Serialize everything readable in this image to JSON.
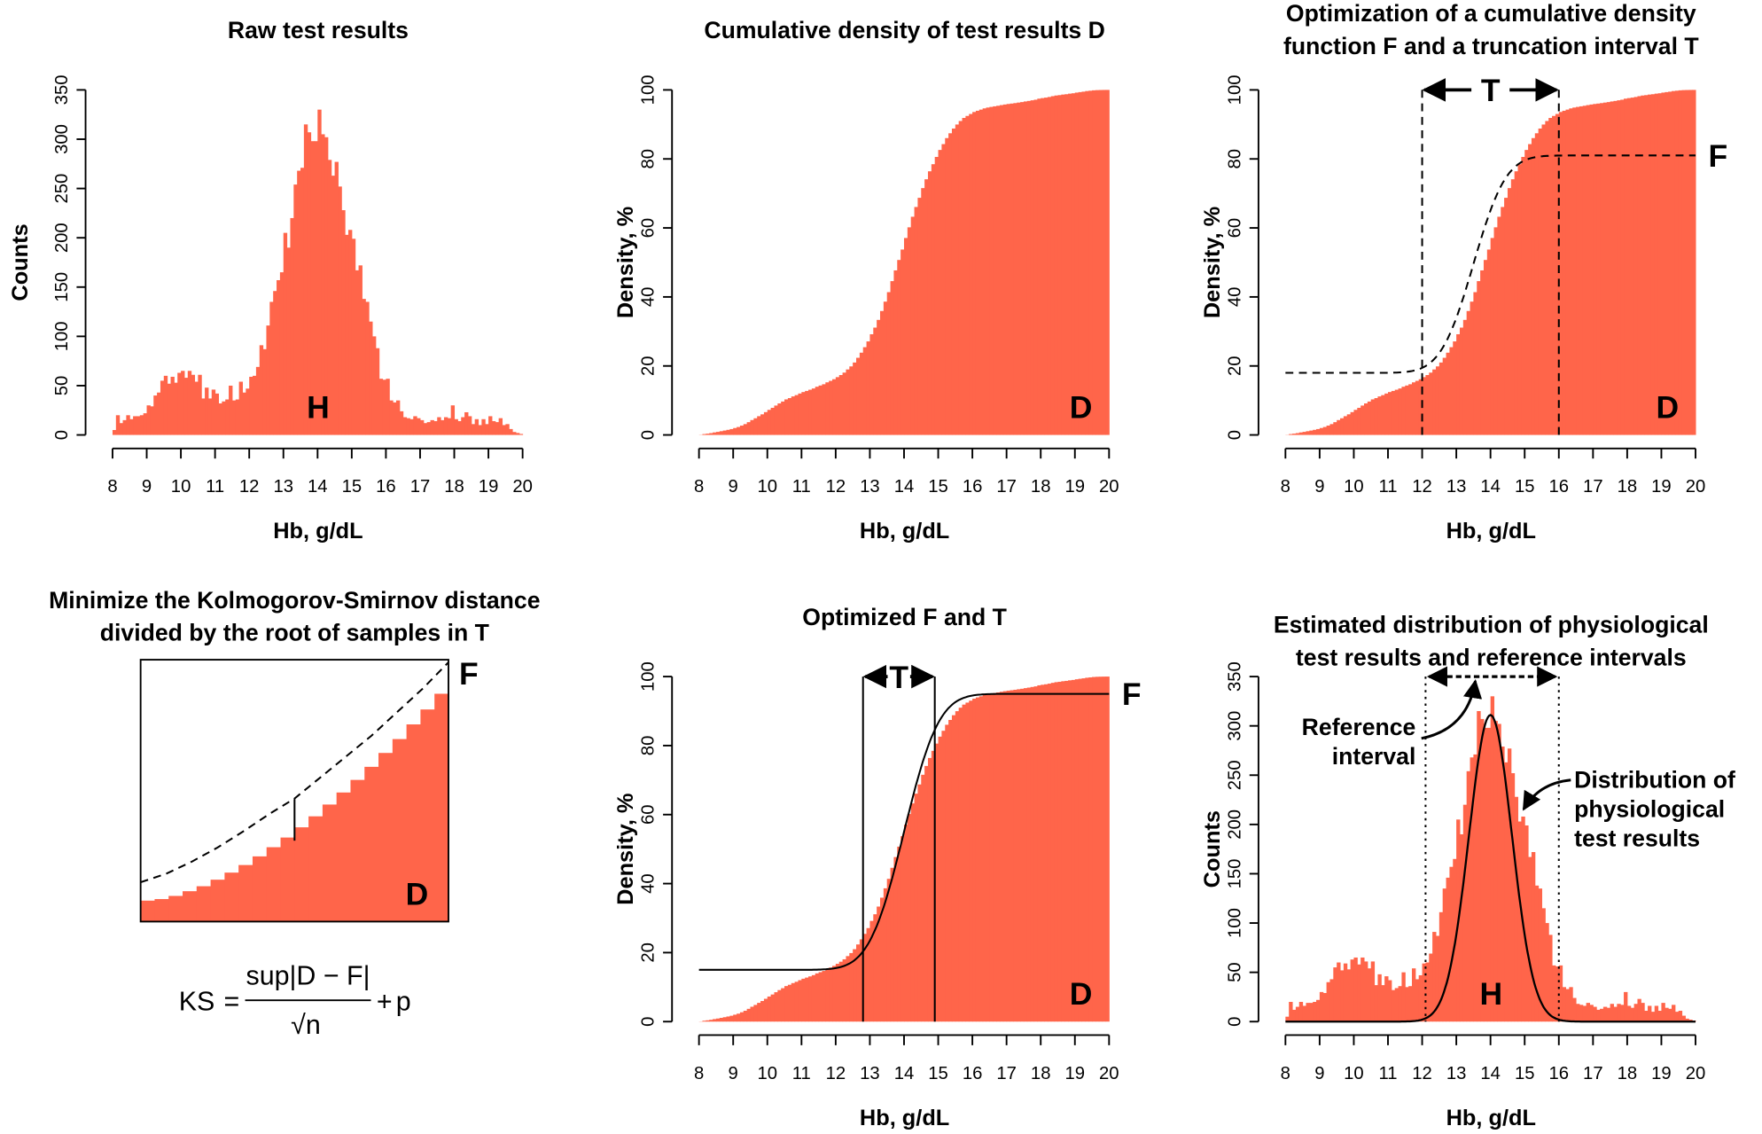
{
  "colors": {
    "bars": "#FF654A",
    "lines": "#000000"
  },
  "chart_data": [
    {
      "id": "p1",
      "type": "bar",
      "title": [
        "Raw test results"
      ],
      "xlabel": "Hb, g/dL",
      "ylabel": "Counts",
      "xlim": [
        8,
        20
      ],
      "ylim": [
        0,
        350
      ],
      "xticks": [
        "8",
        "9",
        "10",
        "11",
        "12",
        "13",
        "14",
        "15",
        "16",
        "17",
        "18",
        "19",
        "20"
      ],
      "yticks": [
        "0",
        "50",
        "100",
        "150",
        "200",
        "250",
        "300",
        "350"
      ],
      "label": "H"
    },
    {
      "id": "p2",
      "type": "area",
      "title": [
        "Cumulative density of test results D"
      ],
      "xlabel": "Hb, g/dL",
      "ylabel": "Density, %",
      "xlim": [
        8,
        20
      ],
      "ylim": [
        0,
        100
      ],
      "xticks": [
        "8",
        "9",
        "10",
        "11",
        "12",
        "13",
        "14",
        "15",
        "16",
        "17",
        "18",
        "19",
        "20"
      ],
      "yticks": [
        "0",
        "20",
        "40",
        "60",
        "80",
        "100"
      ],
      "label": "D"
    },
    {
      "id": "p3",
      "type": "area",
      "title": [
        "Optimization of a cumulative density",
        "function F and a truncation interval T"
      ],
      "xlabel": "Hb, g/dL",
      "ylabel": "Density, %",
      "xlim": [
        8,
        20
      ],
      "ylim": [
        0,
        100
      ],
      "xticks": [
        "8",
        "9",
        "10",
        "11",
        "12",
        "13",
        "14",
        "15",
        "16",
        "17",
        "18",
        "19",
        "20"
      ],
      "yticks": [
        "0",
        "20",
        "40",
        "60",
        "80",
        "100"
      ],
      "label": "D",
      "f_label": "F",
      "t_label": "T",
      "T": [
        12,
        16
      ],
      "F": {
        "style": "dashed",
        "lower": 18,
        "upper": 81,
        "mean": 13.5,
        "sd": 0.75
      }
    },
    {
      "id": "p4",
      "type": "diagram",
      "title": [
        "Minimize the Kolmogorov-Smirnov distance",
        "divided by the root of samples in T"
      ],
      "label": "D",
      "f_label": "F",
      "D_steps": [
        8,
        8.6,
        9.8,
        11.6,
        13.5,
        16,
        18.7,
        21.6,
        24.9,
        28.4,
        32.1,
        36,
        40.2,
        44.7,
        49.3,
        54.1,
        59.1,
        64.4,
        69.7,
        75.3,
        81,
        87
      ],
      "F_levels": [
        15,
        18.3,
        22.9,
        28.3,
        34.4,
        41,
        47,
        55,
        63,
        71,
        80,
        89,
        99
      ],
      "formula": {
        "lhs": "KS",
        "eq": "=",
        "numerator": "sup|D − F|",
        "denominator": "√n",
        "plus": "+",
        "p": "p"
      }
    },
    {
      "id": "p5",
      "type": "area",
      "title": [
        "Optimized F and T"
      ],
      "xlabel": "Hb, g/dL",
      "ylabel": "Density, %",
      "xlim": [
        8,
        20
      ],
      "ylim": [
        0,
        100
      ],
      "xticks": [
        "8",
        "9",
        "10",
        "11",
        "12",
        "13",
        "14",
        "15",
        "16",
        "17",
        "18",
        "19",
        "20"
      ],
      "yticks": [
        "0",
        "20",
        "40",
        "60",
        "80",
        "100"
      ],
      "label": "D",
      "f_label": "F",
      "t_label": "T",
      "T": [
        12.8,
        14.9
      ],
      "F": {
        "style": "solid",
        "lower": 15,
        "upper": 95,
        "mean": 14.0,
        "sd": 0.8
      }
    },
    {
      "id": "p6",
      "type": "bar",
      "title": [
        "Estimated distribution of physiological",
        "test results and reference intervals"
      ],
      "xlabel": "Hb, g/dL",
      "ylabel": "Counts",
      "xlim": [
        8,
        20
      ],
      "ylim": [
        0,
        350
      ],
      "xticks": [
        "8",
        "9",
        "10",
        "11",
        "12",
        "13",
        "14",
        "15",
        "16",
        "17",
        "18",
        "19",
        "20"
      ],
      "yticks": [
        "0",
        "50",
        "100",
        "150",
        "200",
        "250",
        "300",
        "350"
      ],
      "label": "H",
      "reference_interval": [
        12.1,
        16.0
      ],
      "fit": {
        "peak": 311,
        "mean": 14.0,
        "sd": 0.63
      },
      "annotations": {
        "ref": [
          "Reference",
          "interval"
        ],
        "dist": [
          "Distribution of",
          "physiological",
          "test results"
        ]
      }
    }
  ],
  "histogram": {
    "bin_start": 8,
    "bin_width": 0.1,
    "counts": [
      5,
      20,
      12,
      15,
      20,
      16,
      19,
      19,
      20,
      22,
      30,
      29,
      40,
      43,
      55,
      60,
      52,
      59,
      53,
      63,
      65,
      58,
      65,
      61,
      54,
      61,
      37,
      48,
      37,
      46,
      42,
      32,
      34,
      36,
      50,
      35,
      36,
      54,
      43,
      47,
      59,
      60,
      69,
      91,
      87,
      111,
      135,
      146,
      157,
      165,
      205,
      190,
      220,
      254,
      268,
      271,
      315,
      307,
      298,
      298,
      330,
      305,
      302,
      279,
      263,
      277,
      252,
      228,
      203,
      208,
      199,
      167,
      172,
      138,
      135,
      115,
      100,
      88,
      57,
      56,
      57,
      35,
      33,
      35,
      24,
      18,
      17,
      16,
      19,
      17,
      15,
      12,
      13,
      15,
      14,
      18,
      15,
      18,
      17,
      30,
      16,
      14,
      18,
      23,
      19,
      11,
      16,
      10,
      16,
      11,
      19,
      14,
      13,
      17,
      10,
      11,
      6,
      3,
      2,
      1
    ]
  }
}
